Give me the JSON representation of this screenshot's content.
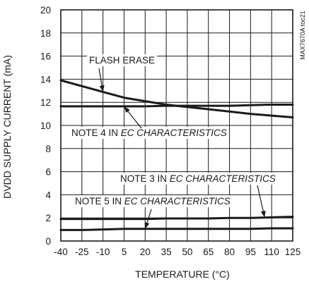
{
  "chart_data": {
    "type": "line",
    "title": "",
    "xlabel": "TEMPERATURE (°C)",
    "ylabel": "DVDD SUPPLY CURRENT (mA)",
    "xlim": [
      -40,
      125
    ],
    "ylim": [
      0,
      20
    ],
    "x_ticks": [
      -40,
      -25,
      -10,
      5,
      20,
      35,
      50,
      65,
      80,
      95,
      110,
      125
    ],
    "x_tick_labels": [
      "-40",
      "-25",
      "-10",
      "5",
      "20",
      "35",
      "50",
      "65",
      "80",
      "95",
      "110",
      "125"
    ],
    "y_ticks": [
      0,
      2,
      4,
      6,
      8,
      10,
      12,
      14,
      16,
      18,
      20
    ],
    "y_tick_labels": [
      "0",
      "2",
      "4",
      "6",
      "8",
      "10",
      "12",
      "14",
      "16",
      "18",
      "20"
    ],
    "grid": true,
    "side_label": "MAX7670A toc21",
    "series": [
      {
        "x": [
          -40,
          -25,
          -10,
          5,
          20,
          35,
          50,
          65,
          80,
          95,
          110,
          125
        ],
        "y": [
          13.9,
          13.4,
          12.9,
          12.4,
          12.1,
          11.8,
          11.6,
          11.4,
          11.2,
          11.0,
          10.85,
          10.7
        ]
      },
      {
        "x": [
          -40,
          -25,
          -10,
          5,
          20,
          35,
          50,
          65,
          80,
          95,
          110,
          125
        ],
        "y": [
          11.65,
          11.65,
          11.65,
          11.65,
          11.65,
          11.7,
          11.7,
          11.7,
          11.7,
          11.75,
          11.8,
          11.8
        ]
      },
      {
        "x": [
          -40,
          -25,
          -10,
          5,
          20,
          35,
          50,
          65,
          80,
          95,
          110,
          125
        ],
        "y": [
          1.9,
          1.9,
          1.9,
          1.9,
          1.9,
          1.95,
          1.95,
          1.95,
          2.0,
          2.0,
          2.05,
          2.1
        ]
      },
      {
        "x": [
          -40,
          -25,
          -10,
          5,
          20,
          35,
          50,
          65,
          80,
          95,
          110,
          125
        ],
        "y": [
          0.95,
          0.95,
          1.0,
          1.05,
          1.05,
          1.05,
          1.05,
          1.05,
          1.05,
          1.05,
          1.1,
          1.1
        ]
      }
    ],
    "annotations": [
      {
        "text": "FLASH ERASE",
        "italic": "",
        "point": [
          -10,
          12.9
        ]
      },
      {
        "text": "NOTE 4 IN ",
        "italic": "EC CHARACTERISTICS",
        "point": [
          5,
          11.65
        ]
      },
      {
        "text": "NOTE 3 IN ",
        "italic": "EC CHARACTERISTICS",
        "point": [
          105,
          2.05
        ]
      },
      {
        "text": "NOTE 5 IN ",
        "italic": "EC CHARACTERISTICS",
        "point": [
          20,
          1.05
        ]
      }
    ]
  }
}
